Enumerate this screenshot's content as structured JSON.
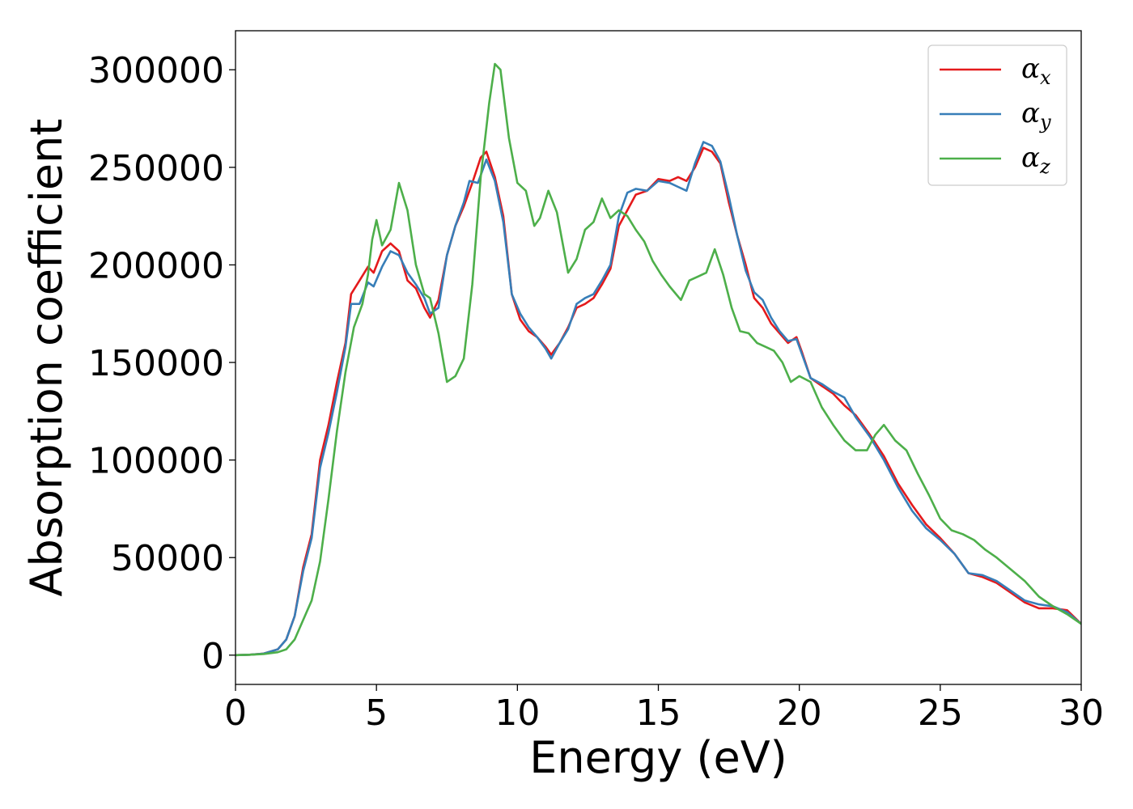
{
  "chart_data": {
    "type": "line",
    "title": "",
    "xlabel": "Energy (eV)",
    "ylabel": "Absorption coefficient",
    "xlim": [
      0,
      30
    ],
    "ylim": [
      -15000,
      320000
    ],
    "xticks": [
      0,
      5,
      10,
      15,
      20,
      25,
      30
    ],
    "yticks": [
      0,
      50000,
      100000,
      150000,
      200000,
      250000,
      300000
    ],
    "xtick_labels": [
      "0",
      "5",
      "10",
      "15",
      "20",
      "25",
      "30"
    ],
    "ytick_labels": [
      "0",
      "50000",
      "100000",
      "150000",
      "200000",
      "250000",
      "300000"
    ],
    "grid": false,
    "legend_position": "top-right",
    "series": [
      {
        "name": "α",
        "sub": "x",
        "color": "#e41a1c",
        "points": [
          [
            0,
            0
          ],
          [
            0.5,
            200
          ],
          [
            1,
            800
          ],
          [
            1.5,
            3000
          ],
          [
            1.8,
            8000
          ],
          [
            2.1,
            20000
          ],
          [
            2.4,
            45000
          ],
          [
            2.7,
            62000
          ],
          [
            3.0,
            100000
          ],
          [
            3.3,
            118000
          ],
          [
            3.6,
            140000
          ],
          [
            3.9,
            160000
          ],
          [
            4.1,
            185000
          ],
          [
            4.4,
            192000
          ],
          [
            4.7,
            199000
          ],
          [
            4.9,
            196000
          ],
          [
            5.2,
            207000
          ],
          [
            5.5,
            211000
          ],
          [
            5.8,
            207000
          ],
          [
            6.1,
            192000
          ],
          [
            6.4,
            188000
          ],
          [
            6.7,
            178000
          ],
          [
            6.9,
            173000
          ],
          [
            7.2,
            182000
          ],
          [
            7.5,
            205000
          ],
          [
            7.8,
            220000
          ],
          [
            8.1,
            230000
          ],
          [
            8.4,
            242000
          ],
          [
            8.7,
            255000
          ],
          [
            8.9,
            258000
          ],
          [
            9.2,
            245000
          ],
          [
            9.5,
            225000
          ],
          [
            9.8,
            185000
          ],
          [
            10.1,
            172000
          ],
          [
            10.4,
            166000
          ],
          [
            10.7,
            163000
          ],
          [
            11.0,
            158000
          ],
          [
            11.2,
            154000
          ],
          [
            11.5,
            160000
          ],
          [
            11.8,
            168000
          ],
          [
            12.1,
            178000
          ],
          [
            12.4,
            180000
          ],
          [
            12.7,
            183000
          ],
          [
            13.0,
            190000
          ],
          [
            13.3,
            198000
          ],
          [
            13.6,
            220000
          ],
          [
            13.9,
            228000
          ],
          [
            14.2,
            236000
          ],
          [
            14.6,
            238000
          ],
          [
            15.0,
            244000
          ],
          [
            15.4,
            243000
          ],
          [
            15.7,
            245000
          ],
          [
            16.0,
            243000
          ],
          [
            16.3,
            250000
          ],
          [
            16.6,
            260000
          ],
          [
            16.9,
            258000
          ],
          [
            17.2,
            252000
          ],
          [
            17.5,
            232000
          ],
          [
            17.8,
            215000
          ],
          [
            18.1,
            200000
          ],
          [
            18.4,
            183000
          ],
          [
            18.7,
            178000
          ],
          [
            19.0,
            170000
          ],
          [
            19.3,
            165000
          ],
          [
            19.6,
            160000
          ],
          [
            19.9,
            163000
          ],
          [
            20.1,
            155000
          ],
          [
            20.4,
            142000
          ],
          [
            20.8,
            138000
          ],
          [
            21.2,
            134000
          ],
          [
            21.6,
            128000
          ],
          [
            22.0,
            123000
          ],
          [
            22.5,
            113000
          ],
          [
            23.0,
            102000
          ],
          [
            23.5,
            88000
          ],
          [
            24.0,
            77000
          ],
          [
            24.5,
            67000
          ],
          [
            25.0,
            60000
          ],
          [
            25.5,
            52000
          ],
          [
            26.0,
            42000
          ],
          [
            26.5,
            40000
          ],
          [
            27.0,
            37000
          ],
          [
            27.5,
            32000
          ],
          [
            28.0,
            27000
          ],
          [
            28.5,
            24000
          ],
          [
            29.0,
            24000
          ],
          [
            29.5,
            23000
          ],
          [
            30.0,
            16000
          ]
        ]
      },
      {
        "name": "α",
        "sub": "y",
        "color": "#377eb8",
        "points": [
          [
            0,
            0
          ],
          [
            0.5,
            200
          ],
          [
            1,
            800
          ],
          [
            1.5,
            3000
          ],
          [
            1.8,
            8000
          ],
          [
            2.1,
            20000
          ],
          [
            2.4,
            43000
          ],
          [
            2.7,
            60000
          ],
          [
            3.0,
            96000
          ],
          [
            3.3,
            114000
          ],
          [
            3.6,
            135000
          ],
          [
            3.9,
            158000
          ],
          [
            4.1,
            180000
          ],
          [
            4.4,
            180000
          ],
          [
            4.7,
            191000
          ],
          [
            4.9,
            189000
          ],
          [
            5.2,
            199000
          ],
          [
            5.5,
            207000
          ],
          [
            5.8,
            205000
          ],
          [
            6.1,
            196000
          ],
          [
            6.4,
            190000
          ],
          [
            6.7,
            183000
          ],
          [
            6.9,
            175000
          ],
          [
            7.2,
            178000
          ],
          [
            7.5,
            205000
          ],
          [
            7.8,
            220000
          ],
          [
            8.1,
            232000
          ],
          [
            8.3,
            243000
          ],
          [
            8.6,
            242000
          ],
          [
            8.9,
            254000
          ],
          [
            9.2,
            243000
          ],
          [
            9.5,
            222000
          ],
          [
            9.8,
            185000
          ],
          [
            10.1,
            175000
          ],
          [
            10.4,
            168000
          ],
          [
            10.7,
            163000
          ],
          [
            11.0,
            157000
          ],
          [
            11.2,
            152000
          ],
          [
            11.5,
            160000
          ],
          [
            11.8,
            167000
          ],
          [
            12.1,
            180000
          ],
          [
            12.4,
            183000
          ],
          [
            12.7,
            185000
          ],
          [
            13.0,
            192000
          ],
          [
            13.3,
            200000
          ],
          [
            13.6,
            225000
          ],
          [
            13.9,
            237000
          ],
          [
            14.2,
            239000
          ],
          [
            14.6,
            238000
          ],
          [
            15.0,
            243000
          ],
          [
            15.4,
            242000
          ],
          [
            15.7,
            240000
          ],
          [
            16.0,
            238000
          ],
          [
            16.3,
            252000
          ],
          [
            16.6,
            263000
          ],
          [
            16.9,
            261000
          ],
          [
            17.2,
            253000
          ],
          [
            17.5,
            235000
          ],
          [
            17.8,
            215000
          ],
          [
            18.1,
            197000
          ],
          [
            18.4,
            186000
          ],
          [
            18.7,
            182000
          ],
          [
            19.0,
            173000
          ],
          [
            19.3,
            166000
          ],
          [
            19.6,
            161000
          ],
          [
            19.9,
            162000
          ],
          [
            20.1,
            154000
          ],
          [
            20.4,
            142000
          ],
          [
            20.8,
            139000
          ],
          [
            21.2,
            135000
          ],
          [
            21.6,
            132000
          ],
          [
            22.0,
            122000
          ],
          [
            22.5,
            112000
          ],
          [
            23.0,
            100000
          ],
          [
            23.5,
            86000
          ],
          [
            24.0,
            74000
          ],
          [
            24.5,
            65000
          ],
          [
            25.0,
            59000
          ],
          [
            25.5,
            52000
          ],
          [
            26.0,
            42000
          ],
          [
            26.5,
            41000
          ],
          [
            27.0,
            38000
          ],
          [
            27.5,
            33000
          ],
          [
            28.0,
            28000
          ],
          [
            28.5,
            26000
          ],
          [
            29.0,
            25000
          ],
          [
            29.5,
            22000
          ],
          [
            30.0,
            16000
          ]
        ]
      },
      {
        "name": "α",
        "sub": "z",
        "color": "#4daf4a",
        "points": [
          [
            0,
            0
          ],
          [
            0.5,
            200
          ],
          [
            1,
            600
          ],
          [
            1.5,
            1500
          ],
          [
            1.8,
            3000
          ],
          [
            2.1,
            8000
          ],
          [
            2.4,
            18000
          ],
          [
            2.7,
            28000
          ],
          [
            3.0,
            48000
          ],
          [
            3.3,
            80000
          ],
          [
            3.6,
            115000
          ],
          [
            3.9,
            145000
          ],
          [
            4.2,
            168000
          ],
          [
            4.5,
            180000
          ],
          [
            4.7,
            195000
          ],
          [
            4.85,
            213000
          ],
          [
            5.0,
            223000
          ],
          [
            5.2,
            210000
          ],
          [
            5.5,
            218000
          ],
          [
            5.8,
            242000
          ],
          [
            6.1,
            228000
          ],
          [
            6.4,
            200000
          ],
          [
            6.7,
            185000
          ],
          [
            6.9,
            183000
          ],
          [
            7.2,
            165000
          ],
          [
            7.5,
            140000
          ],
          [
            7.8,
            143000
          ],
          [
            8.1,
            152000
          ],
          [
            8.4,
            190000
          ],
          [
            8.7,
            245000
          ],
          [
            9.0,
            283000
          ],
          [
            9.2,
            303000
          ],
          [
            9.4,
            300000
          ],
          [
            9.7,
            265000
          ],
          [
            10.0,
            242000
          ],
          [
            10.3,
            238000
          ],
          [
            10.6,
            220000
          ],
          [
            10.8,
            224000
          ],
          [
            11.1,
            238000
          ],
          [
            11.4,
            227000
          ],
          [
            11.8,
            196000
          ],
          [
            12.1,
            203000
          ],
          [
            12.4,
            218000
          ],
          [
            12.7,
            222000
          ],
          [
            13.0,
            234000
          ],
          [
            13.3,
            224000
          ],
          [
            13.6,
            228000
          ],
          [
            13.9,
            225000
          ],
          [
            14.2,
            218000
          ],
          [
            14.5,
            212000
          ],
          [
            14.8,
            202000
          ],
          [
            15.1,
            195000
          ],
          [
            15.4,
            189000
          ],
          [
            15.8,
            182000
          ],
          [
            16.1,
            192000
          ],
          [
            16.4,
            194000
          ],
          [
            16.7,
            196000
          ],
          [
            17.0,
            208000
          ],
          [
            17.3,
            195000
          ],
          [
            17.6,
            178000
          ],
          [
            17.9,
            166000
          ],
          [
            18.2,
            165000
          ],
          [
            18.5,
            160000
          ],
          [
            18.8,
            158000
          ],
          [
            19.1,
            156000
          ],
          [
            19.4,
            150000
          ],
          [
            19.7,
            140000
          ],
          [
            20.0,
            143000
          ],
          [
            20.4,
            140000
          ],
          [
            20.8,
            127000
          ],
          [
            21.2,
            118000
          ],
          [
            21.6,
            110000
          ],
          [
            22.0,
            105000
          ],
          [
            22.4,
            105000
          ],
          [
            22.7,
            113000
          ],
          [
            23.0,
            118000
          ],
          [
            23.4,
            110000
          ],
          [
            23.8,
            105000
          ],
          [
            24.2,
            93000
          ],
          [
            24.6,
            82000
          ],
          [
            25.0,
            70000
          ],
          [
            25.4,
            64000
          ],
          [
            25.8,
            62000
          ],
          [
            26.2,
            59000
          ],
          [
            26.6,
            54000
          ],
          [
            27.0,
            50000
          ],
          [
            27.5,
            44000
          ],
          [
            28.0,
            38000
          ],
          [
            28.5,
            30000
          ],
          [
            29.0,
            25000
          ],
          [
            29.5,
            21000
          ],
          [
            30.0,
            16000
          ]
        ]
      }
    ]
  }
}
